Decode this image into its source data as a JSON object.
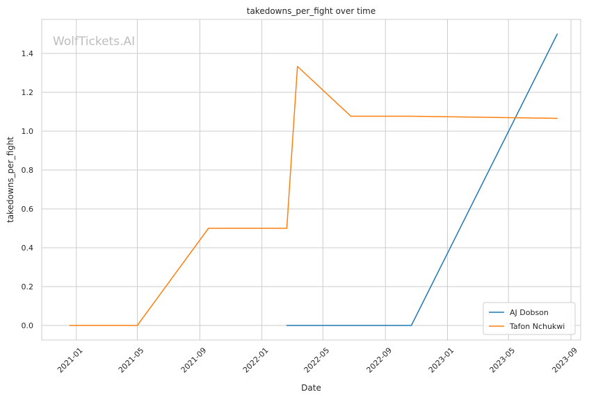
{
  "chart_data": {
    "type": "line",
    "title": "takedowns_per_fight over time",
    "xlabel": "Date",
    "ylabel": "takedowns_per_fight",
    "watermark": "WolfTickets.AI",
    "x_tick_labels": [
      "2021-01",
      "2021-05",
      "2021-09",
      "2022-01",
      "2022-05",
      "2022-09",
      "2023-01",
      "2023-05",
      "2023-09"
    ],
    "x_tick_dates": [
      "2021-01-01",
      "2021-05-01",
      "2021-09-01",
      "2022-01-01",
      "2022-05-01",
      "2022-09-01",
      "2023-01-01",
      "2023-05-01",
      "2023-09-01"
    ],
    "xlim": [
      "2020-10-25",
      "2023-09-20"
    ],
    "y_tick_labels": [
      "0.0",
      "0.2",
      "0.4",
      "0.6",
      "0.8",
      "1.0",
      "1.2",
      "1.4"
    ],
    "y_ticks": [
      0.0,
      0.2,
      0.4,
      0.6,
      0.8,
      1.0,
      1.2,
      1.4
    ],
    "ylim": [
      -0.075,
      1.575
    ],
    "grid": true,
    "legend_position": "lower-right",
    "series": [
      {
        "name": "AJ Dobson",
        "color": "#1f77b4",
        "points": [
          {
            "x": "2022-02-19",
            "y": 0.0
          },
          {
            "x": "2022-10-22",
            "y": 0.0
          },
          {
            "x": "2023-08-05",
            "y": 1.5
          }
        ]
      },
      {
        "name": "Tafon Nchukwi",
        "color": "#ff7f0e",
        "points": [
          {
            "x": "2020-12-19",
            "y": 0.0
          },
          {
            "x": "2021-05-01",
            "y": 0.0
          },
          {
            "x": "2021-09-18",
            "y": 0.5
          },
          {
            "x": "2022-02-19",
            "y": 0.5
          },
          {
            "x": "2022-03-12",
            "y": 1.333
          },
          {
            "x": "2022-06-25",
            "y": 1.077
          },
          {
            "x": "2022-10-22",
            "y": 1.077
          },
          {
            "x": "2023-08-05",
            "y": 1.066
          }
        ]
      }
    ]
  }
}
